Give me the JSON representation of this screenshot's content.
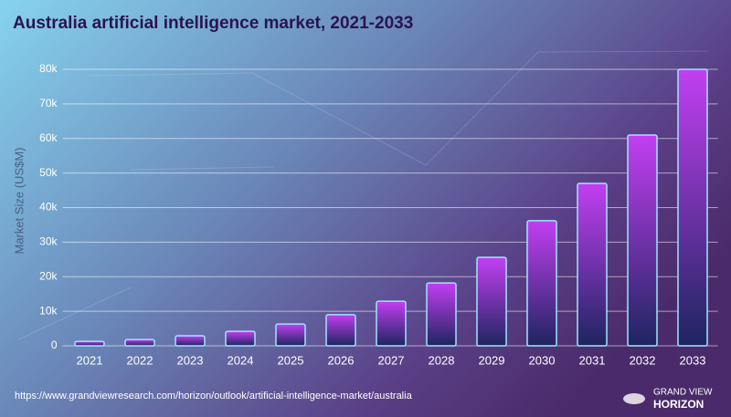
{
  "chart_data": {
    "type": "bar",
    "title": "Australia artificial intelligence market, 2021-2033",
    "y_label": "Market Size (US$M)",
    "source": "https://www.grandviewresearch.com/horizon/outlook/artificial-intelligence-market/australia",
    "brand": [
      "GRAND VIEW",
      "HORIZON"
    ],
    "categories": [
      "2021",
      "2022",
      "2023",
      "2024",
      "2025",
      "2026",
      "2027",
      "2028",
      "2029",
      "2030",
      "2031",
      "2032",
      "2033"
    ],
    "values": [
      1300,
      1800,
      2900,
      4200,
      6300,
      9000,
      12900,
      18200,
      25600,
      36200,
      47000,
      61000,
      80000
    ],
    "color": "#c23ff2",
    "ylim": [
      0,
      80000
    ],
    "yticks": [
      0,
      {
        "value": 10000,
        "label": "10k"
      },
      {
        "value": 20000,
        "label": "20k"
      },
      {
        "value": 30000,
        "label": "30k"
      },
      {
        "value": 40000,
        "label": "40k"
      },
      {
        "value": 50000,
        "label": "50k"
      },
      {
        "value": 60000,
        "label": "60k"
      },
      {
        "value": 70000,
        "label": "70k"
      },
      {
        "value": 80000,
        "label": "80k"
      }
    ],
    "grid": true
  }
}
